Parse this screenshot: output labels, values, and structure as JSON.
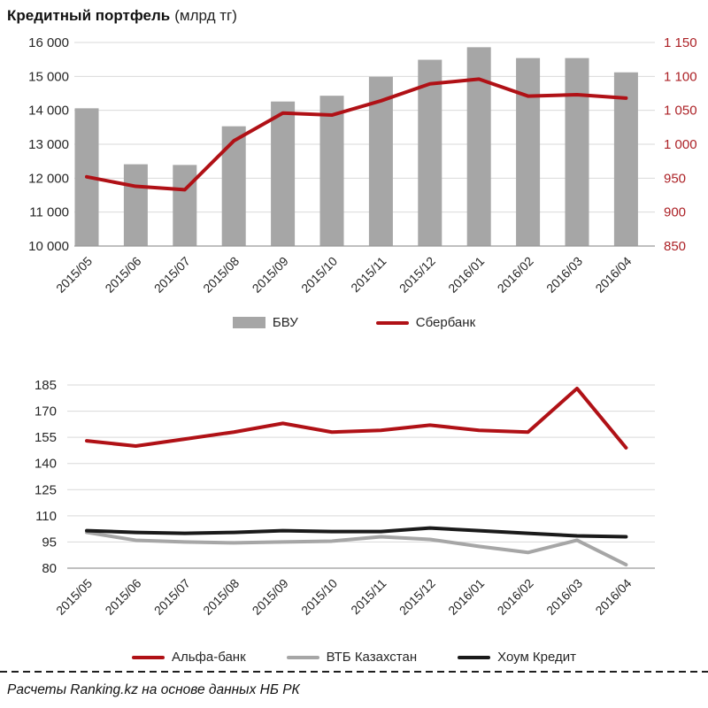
{
  "title": {
    "main": "Кредитный портфель",
    "unit": "(млрд тг)"
  },
  "footer": {
    "text": "Расчеты Ranking.kz на основе данных НБ РК"
  },
  "colors": {
    "bar": "#a6a6a6",
    "red": "#b01116",
    "gray_line": "#a6a6a6",
    "black_line": "#1a1a1a",
    "grid": "#d9d9d9",
    "axis": "#9a9a9a",
    "text": "#262626",
    "right_axis_text": "#ac2126"
  },
  "chart_data": [
    {
      "type": "bar",
      "subtype": "combo-bar-line-two-axes",
      "title": "Кредитный портфель (млрд тг)",
      "categories": [
        "2015/05",
        "2015/06",
        "2015/07",
        "2015/08",
        "2015/09",
        "2015/10",
        "2015/11",
        "2015/12",
        "2016/01",
        "2016/02",
        "2016/03",
        "2016/04"
      ],
      "series": [
        {
          "name": "БВУ",
          "type": "bar",
          "axis": "left",
          "color": "#a6a6a6",
          "values": [
            14060,
            12410,
            12390,
            13530,
            14260,
            14430,
            14990,
            15490,
            15860,
            15540,
            15540,
            15120
          ]
        },
        {
          "name": "Сбербанк",
          "type": "line",
          "axis": "right",
          "color": "#b01116",
          "values": [
            952,
            938,
            933,
            1005,
            1046,
            1043,
            1064,
            1089,
            1096,
            1071,
            1073,
            1068
          ]
        }
      ],
      "axes": {
        "left": {
          "min": 10000,
          "max": 16000,
          "step": 1000,
          "tick_values": [
            16000,
            15000,
            14000,
            13000,
            12000,
            11000,
            10000
          ],
          "tick_labels": [
            "16 000",
            "15 000",
            "14 000",
            "13 000",
            "12 000",
            "11 000",
            "10 000"
          ]
        },
        "right": {
          "min": 850,
          "max": 1150,
          "step": 50,
          "tick_values": [
            1150,
            1100,
            1050,
            1000,
            950,
            900,
            850
          ],
          "tick_labels": [
            "1 150",
            "1 100",
            "1 050",
            "1 000",
            "950",
            "900",
            "850"
          ]
        }
      },
      "grid": true,
      "legend_position": "bottom"
    },
    {
      "type": "line",
      "categories": [
        "2015/05",
        "2015/06",
        "2015/07",
        "2015/08",
        "2015/09",
        "2015/10",
        "2015/11",
        "2015/12",
        "2016/01",
        "2016/02",
        "2016/03",
        "2016/04"
      ],
      "series": [
        {
          "name": "Альфа-банк",
          "type": "line",
          "axis": "left",
          "color": "#b01116",
          "values": [
            153,
            150,
            154,
            158,
            163,
            158,
            159,
            162,
            159,
            158,
            183,
            149
          ]
        },
        {
          "name": "ВТБ Казахстан",
          "type": "line",
          "axis": "left",
          "color": "#a6a6a6",
          "values": [
            100.5,
            96,
            95,
            94.5,
            95,
            95.5,
            98,
            96.5,
            92.5,
            89,
            96,
            82
          ]
        },
        {
          "name": "Хоум Кредит",
          "type": "line",
          "axis": "left",
          "color": "#1a1a1a",
          "values": [
            101.5,
            100.5,
            100,
            100.5,
            101.5,
            101,
            101,
            103,
            101.5,
            100,
            98.5,
            98
          ]
        }
      ],
      "axes": {
        "left": {
          "min": 80,
          "max": 185,
          "step": 15,
          "tick_values": [
            185,
            170,
            155,
            140,
            125,
            110,
            95,
            80
          ],
          "tick_labels": [
            "185",
            "170",
            "155",
            "140",
            "125",
            "110",
            "95",
            "80"
          ]
        }
      },
      "grid": true,
      "legend_position": "bottom"
    }
  ]
}
